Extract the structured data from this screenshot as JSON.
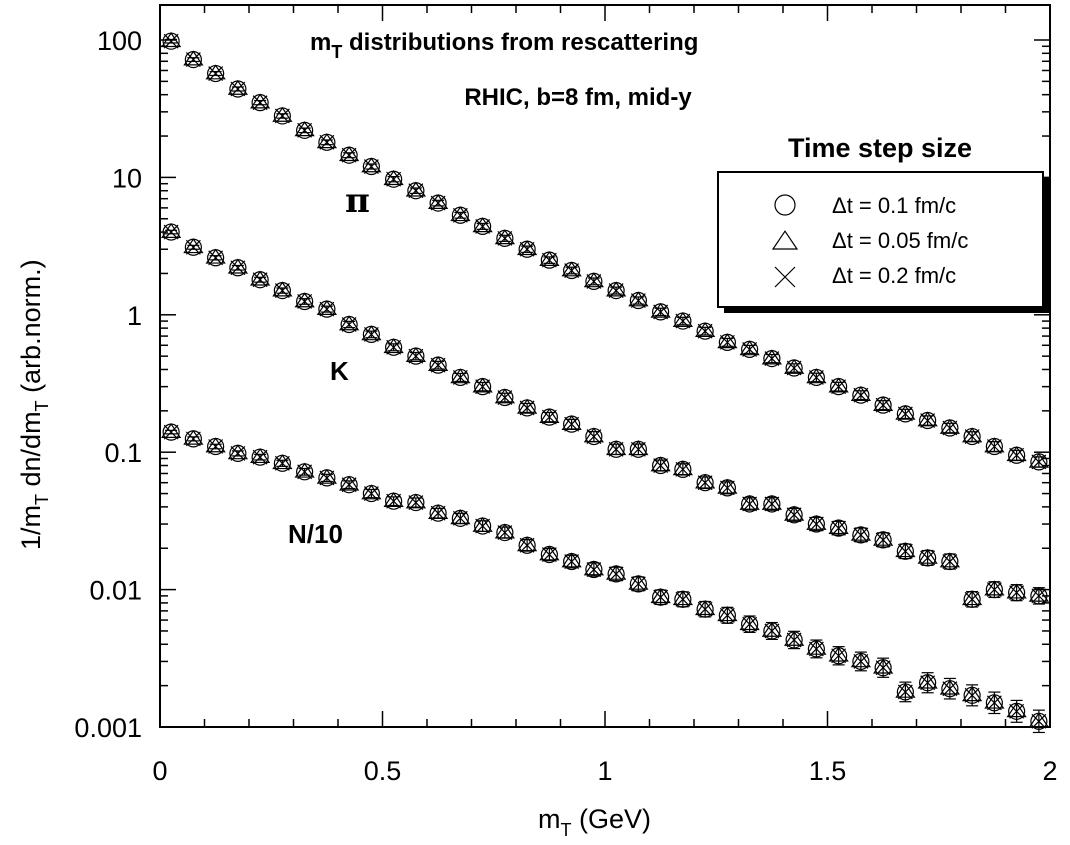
{
  "chart_data": {
    "type": "scatter",
    "title": "m_T distributions from rescattering",
    "title_main": "m",
    "title_sub": "T",
    "title_rest": " distributions from rescattering",
    "subtitle": "RHIC, b=8 fm, mid-y",
    "xlabel": "m_T (GeV)",
    "xlabel_main": "m",
    "xlabel_sub": "T",
    "xlabel_rest": " (GeV)",
    "ylabel": "1/m_T dn/dm_T (arb.norm.)",
    "ylabel_p1": "1/m",
    "ylabel_sub1": "T",
    "ylabel_p2": " dn/dm",
    "ylabel_sub2": "T",
    "ylabel_p3": " (arb.norm.)",
    "xlim": [
      0,
      2
    ],
    "ylim": [
      0.001,
      150
    ],
    "yscale": "log",
    "grid": false,
    "x_ticks": [
      "0",
      "0.5",
      "1",
      "1.5",
      "2"
    ],
    "y_ticks": [
      "0.001",
      "0.01",
      "0.1",
      "1",
      "10",
      "100"
    ],
    "legend_title": "Time step size",
    "legend_position": "top-right",
    "legend": [
      {
        "marker": "circle",
        "label": "Δt = 0.1 fm/c"
      },
      {
        "marker": "triangle",
        "label": "Δt = 0.05 fm/c"
      },
      {
        "marker": "cross",
        "label": "Δt = 0.2 fm/c"
      }
    ],
    "species_labels": [
      {
        "id": "pi",
        "text": "π"
      },
      {
        "id": "kaon",
        "text": "K"
      },
      {
        "id": "nucleon",
        "text": "N/10"
      }
    ],
    "x": [
      0.025,
      0.075,
      0.125,
      0.175,
      0.225,
      0.275,
      0.325,
      0.375,
      0.425,
      0.475,
      0.525,
      0.575,
      0.625,
      0.675,
      0.725,
      0.775,
      0.825,
      0.875,
      0.925,
      0.975,
      1.025,
      1.075,
      1.125,
      1.175,
      1.225,
      1.275,
      1.325,
      1.375,
      1.425,
      1.475,
      1.525,
      1.575,
      1.625,
      1.675,
      1.725,
      1.775,
      1.825,
      1.875,
      1.925,
      1.975
    ],
    "series": [
      {
        "species": "π",
        "values": [
          98,
          72,
          57,
          44,
          35,
          28,
          22,
          18,
          14.5,
          12,
          9.7,
          8.0,
          6.5,
          5.3,
          4.4,
          3.6,
          3.0,
          2.5,
          2.1,
          1.75,
          1.5,
          1.27,
          1.05,
          0.9,
          0.76,
          0.63,
          0.56,
          0.48,
          0.41,
          0.35,
          0.3,
          0.26,
          0.22,
          0.19,
          0.17,
          0.15,
          0.13,
          0.11,
          0.095,
          0.085
        ]
      },
      {
        "species": "K",
        "values": [
          4.0,
          3.1,
          2.6,
          2.2,
          1.8,
          1.5,
          1.25,
          1.1,
          0.85,
          0.72,
          0.58,
          0.5,
          0.43,
          0.35,
          0.3,
          0.25,
          0.21,
          0.18,
          0.16,
          0.13,
          0.105,
          0.105,
          0.08,
          0.075,
          0.06,
          0.055,
          0.042,
          0.042,
          0.035,
          0.03,
          0.028,
          0.025,
          0.023,
          0.019,
          0.017,
          0.016,
          0.0085,
          0.01,
          0.0095,
          0.009
        ]
      },
      {
        "species": "N/10",
        "values": [
          0.14,
          0.125,
          0.11,
          0.098,
          0.092,
          0.083,
          0.072,
          0.065,
          0.058,
          0.05,
          0.044,
          0.043,
          0.036,
          0.033,
          0.029,
          0.026,
          0.021,
          0.018,
          0.016,
          0.014,
          0.013,
          0.011,
          0.0088,
          0.0085,
          0.0072,
          0.0065,
          0.0056,
          0.005,
          0.0043,
          0.0037,
          0.0033,
          0.003,
          0.0027,
          0.0018,
          0.0021,
          0.0019,
          0.0017,
          0.0015,
          0.0013,
          0.0011
        ]
      }
    ]
  }
}
